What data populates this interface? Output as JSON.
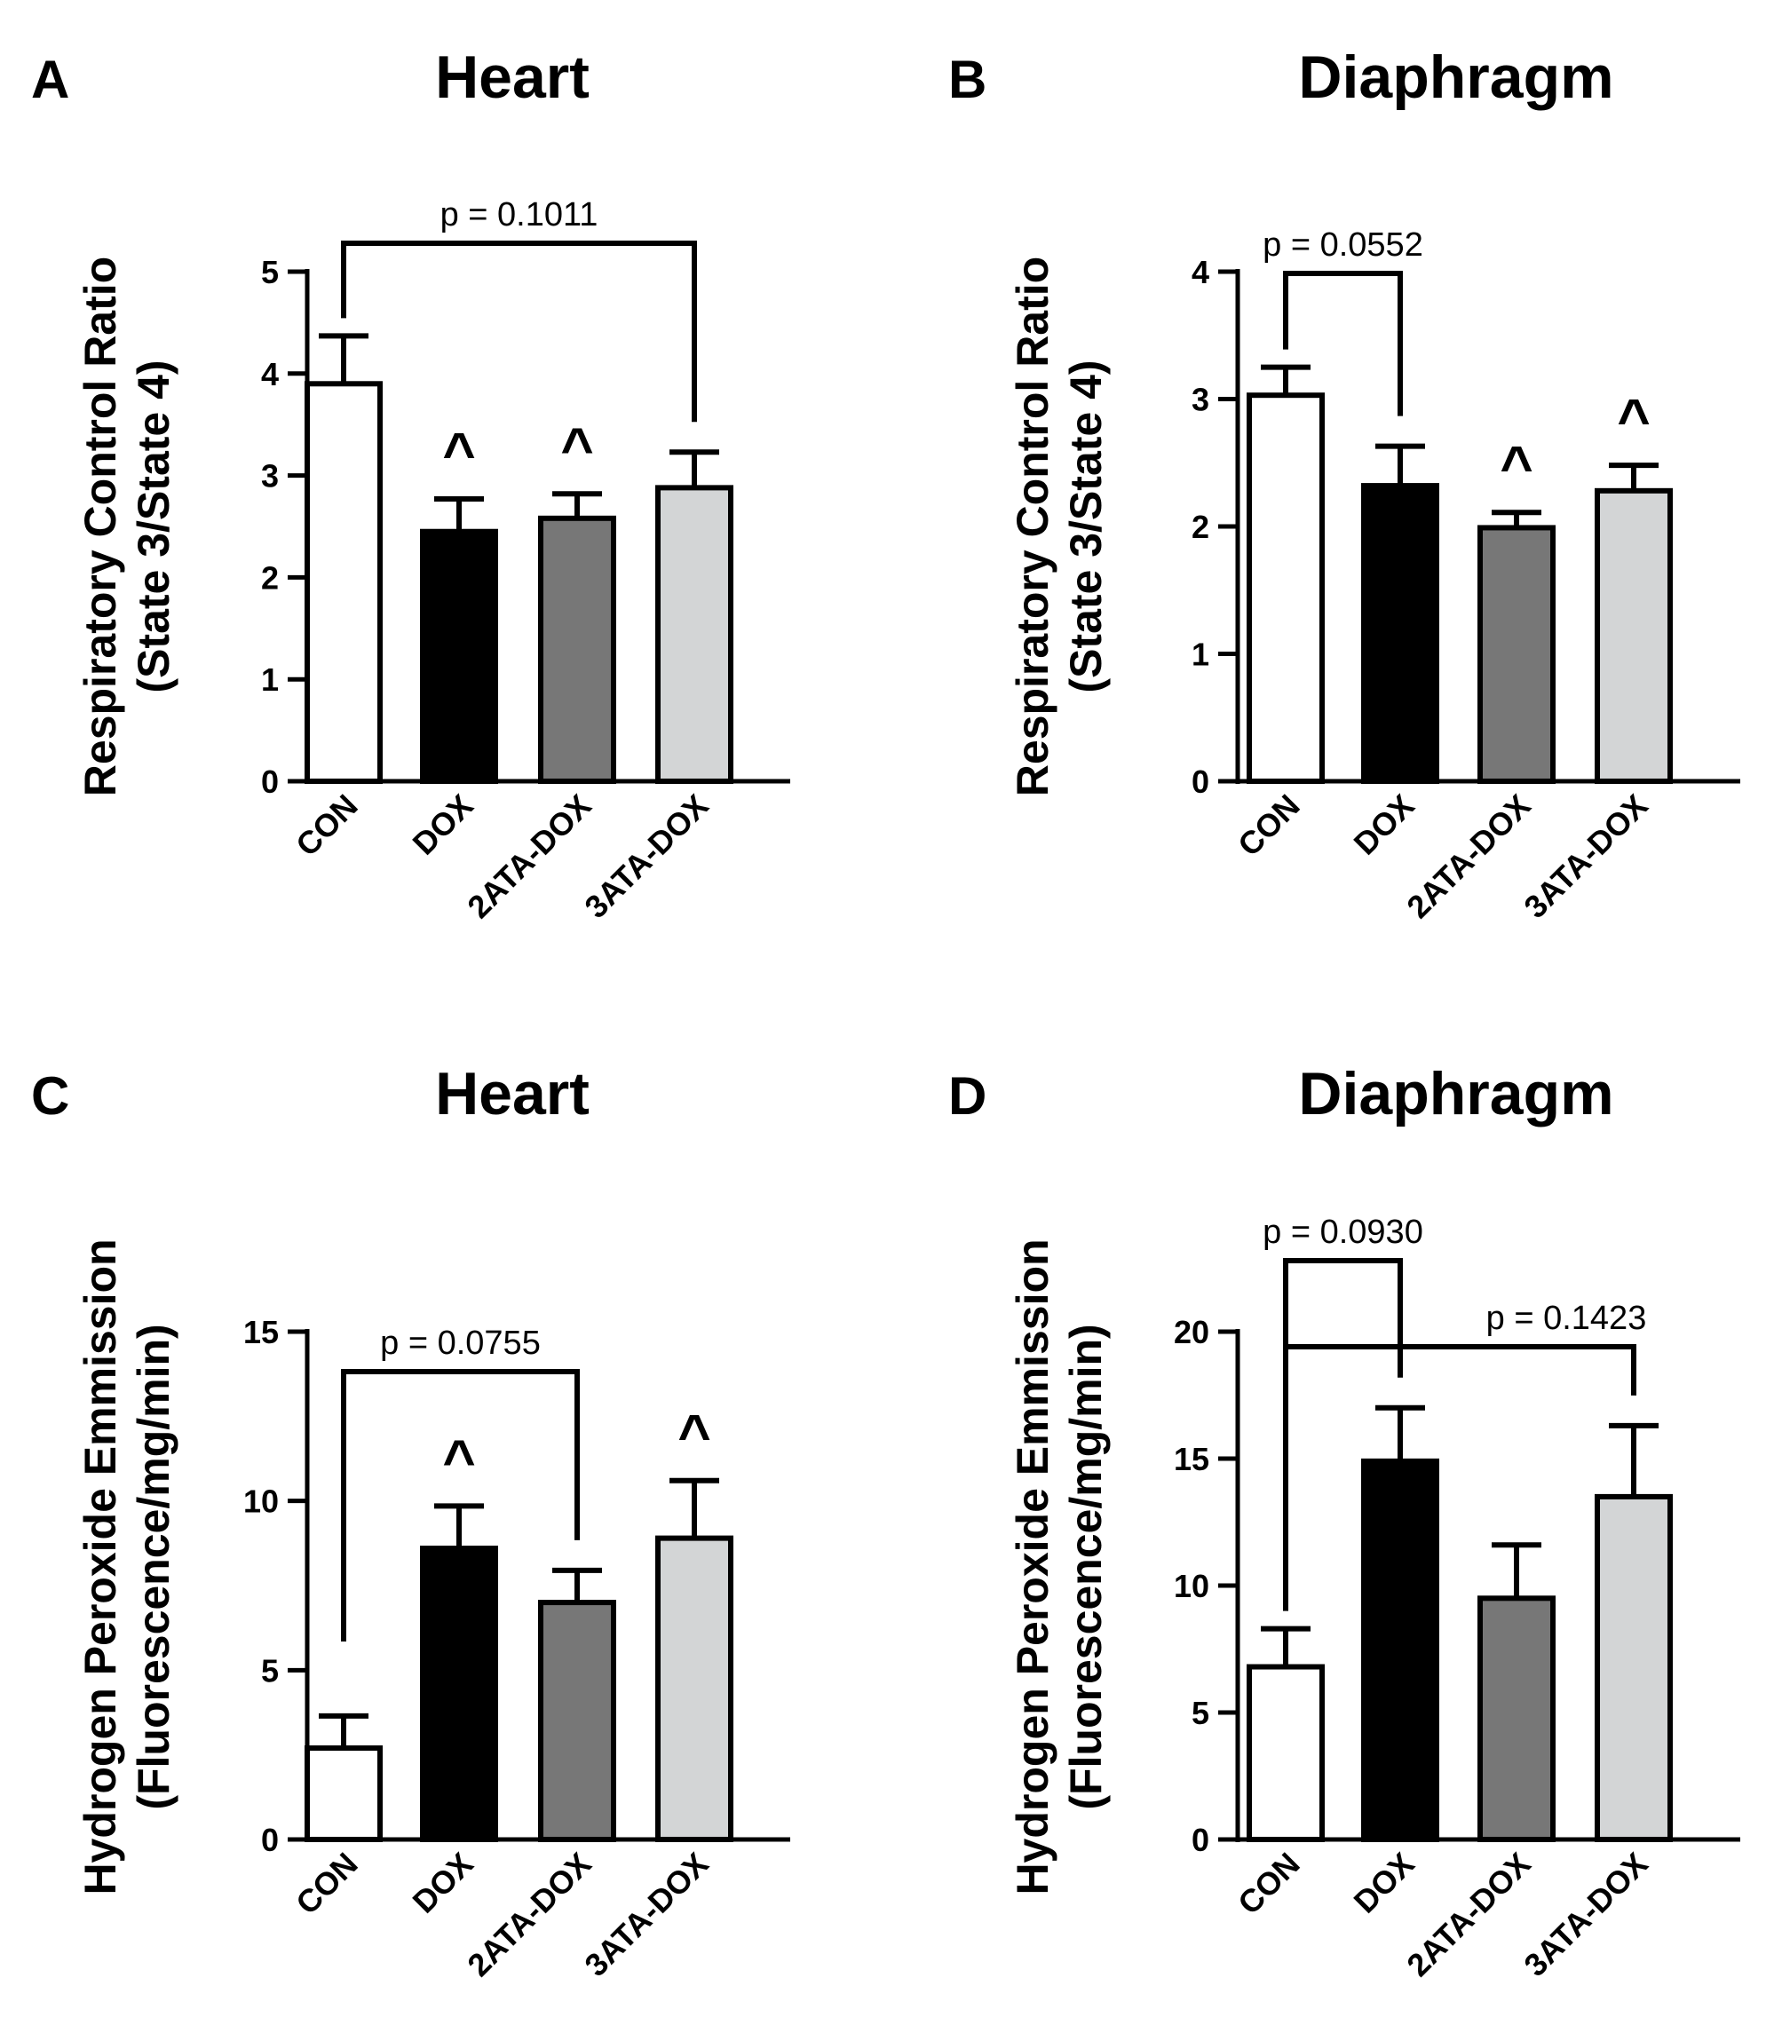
{
  "chart_data": [
    {
      "panel": "A",
      "type": "bar",
      "title": "Heart",
      "ylabel_lines": [
        "Respiratory Control Ratio",
        "(State 3/State 4)"
      ],
      "categories": [
        "CON",
        "DOX",
        "2ATA-DOX",
        "3ATA-DOX"
      ],
      "values": [
        3.9,
        2.45,
        2.58,
        2.88
      ],
      "errors": [
        0.47,
        0.32,
        0.24,
        0.35
      ],
      "ylim": [
        0,
        5
      ],
      "yticks": [
        0,
        1,
        2,
        3,
        4,
        5
      ],
      "markers": [
        {
          "category": "DOX",
          "symbol": "^"
        },
        {
          "category": "2ATA-DOX",
          "symbol": "^"
        }
      ],
      "brackets": [
        {
          "from": "CON",
          "to": "3ATA-DOX",
          "label": "p = 0.1011"
        }
      ]
    },
    {
      "panel": "B",
      "type": "bar",
      "title": "Diaphragm",
      "ylabel_lines": [
        "Respiratory Control Ratio",
        "(State 3/State 4)"
      ],
      "categories": [
        "CON",
        "DOX",
        "2ATA-DOX",
        "3ATA-DOX"
      ],
      "values": [
        3.03,
        2.32,
        1.99,
        2.28
      ],
      "errors": [
        0.22,
        0.31,
        0.12,
        0.2
      ],
      "ylim": [
        0,
        4
      ],
      "yticks": [
        0,
        1,
        2,
        3,
        4
      ],
      "markers": [
        {
          "category": "2ATA-DOX",
          "symbol": "^"
        },
        {
          "category": "3ATA-DOX",
          "symbol": "^"
        }
      ],
      "brackets": [
        {
          "from": "CON",
          "to": "DOX",
          "label": "p = 0.0552"
        }
      ]
    },
    {
      "panel": "C",
      "type": "bar",
      "title": "Heart",
      "ylabel_lines": [
        "Hydrogen Peroxide Emmission",
        "(Fluorescence/mg/min)"
      ],
      "categories": [
        "CON",
        "DOX",
        "2ATA-DOX",
        "3ATA-DOX"
      ],
      "values": [
        2.7,
        8.6,
        7.0,
        8.9
      ],
      "errors": [
        0.95,
        1.25,
        0.95,
        1.7
      ],
      "ylim": [
        0,
        15
      ],
      "yticks": [
        0,
        5,
        10,
        15
      ],
      "markers": [
        {
          "category": "DOX",
          "symbol": "^"
        },
        {
          "category": "3ATA-DOX",
          "symbol": "^"
        }
      ],
      "brackets": [
        {
          "from": "CON",
          "to": "2ATA-DOX",
          "label": "p = 0.0755"
        }
      ]
    },
    {
      "panel": "D",
      "type": "bar",
      "title": "Diaphragm",
      "ylabel_lines": [
        "Hydrogen Peroxide Emmission",
        "(Fluorescence/mg/min)"
      ],
      "categories": [
        "CON",
        "DOX",
        "2ATA-DOX",
        "3ATA-DOX"
      ],
      "values": [
        6.8,
        14.9,
        9.5,
        13.5
      ],
      "errors": [
        1.5,
        2.1,
        2.1,
        2.8
      ],
      "ylim": [
        0,
        20
      ],
      "yticks": [
        0,
        5,
        10,
        15,
        20
      ],
      "markers": [],
      "brackets": [
        {
          "from": "CON",
          "to": "DOX",
          "label": "p = 0.0930"
        },
        {
          "from": "CON",
          "to": "3ATA-DOX",
          "label": "p = 0.1423"
        }
      ]
    }
  ],
  "bar_colors": [
    "#ffffff",
    "#000000",
    "#777777",
    "#d3d5d6"
  ]
}
